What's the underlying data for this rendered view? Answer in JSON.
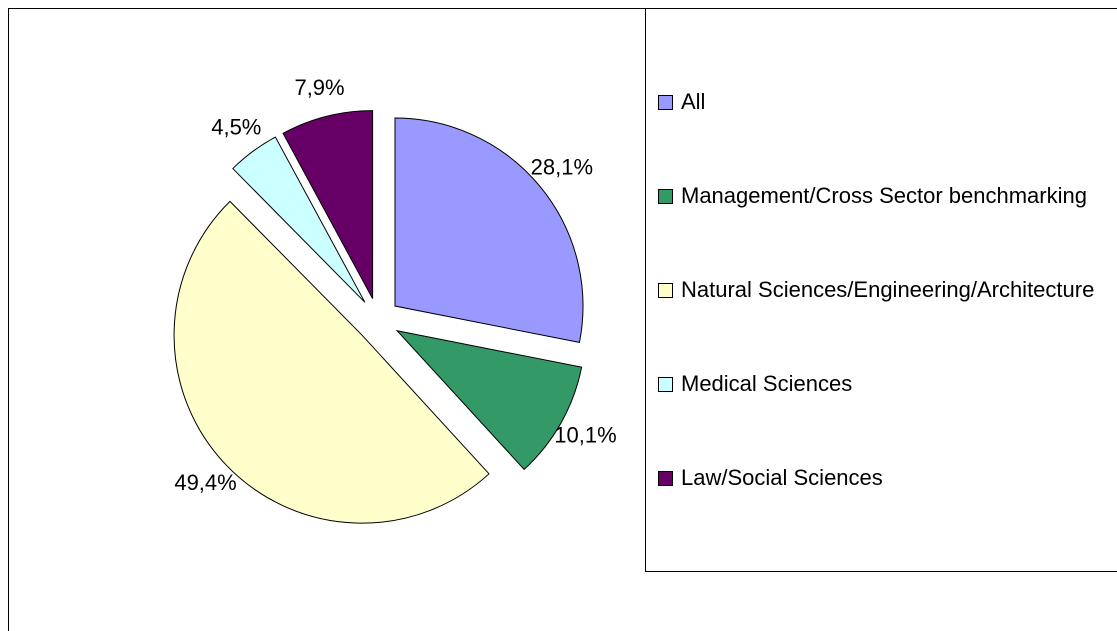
{
  "chart_data": {
    "type": "pie",
    "categories": [
      "All",
      "Management/Cross Sector benchmarking",
      "Natural Sciences/Engineering/Architecture",
      "Medical Sciences",
      "Law/Social Sciences"
    ],
    "values": [
      28.1,
      10.1,
      49.4,
      4.5,
      7.9
    ],
    "value_labels": [
      "28,1%",
      "10,1%",
      "49,4%",
      "4,5%",
      "7,9%"
    ],
    "colors": [
      "#9999ff",
      "#339966",
      "#ffffcc",
      "#ccffff",
      "#660066"
    ],
    "legend": "right"
  }
}
